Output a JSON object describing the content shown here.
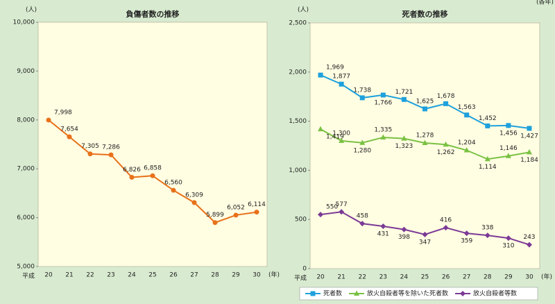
{
  "note": "(各年)",
  "chart_data": [
    {
      "type": "line",
      "title": "負傷者数の推移",
      "unit": "(人)",
      "x_prefix": "平成",
      "x_suffix": "(年)",
      "categories": [
        "20",
        "21",
        "22",
        "23",
        "24",
        "25",
        "26",
        "27",
        "28",
        "29",
        "30"
      ],
      "series": [
        {
          "name": null,
          "color": "#e8711a",
          "marker": "circle",
          "values": [
            7998,
            7654,
            7305,
            7286,
            6826,
            6858,
            6560,
            6309,
            5899,
            6052,
            6114
          ],
          "value_labels": [
            "7,998",
            "7,654",
            "7,305",
            "7,286",
            "6,826",
            "6,858",
            "6,560",
            "6,309",
            "5,899",
            "6,052",
            "6,114"
          ]
        }
      ],
      "ylim": [
        5000,
        10000
      ],
      "yticks": [
        {
          "value": 5000,
          "label": "5,000"
        },
        {
          "value": 6000,
          "label": "6,000"
        },
        {
          "value": 7000,
          "label": "7,000"
        },
        {
          "value": 8000,
          "label": "8,000"
        },
        {
          "value": 9000,
          "label": "9,000"
        },
        {
          "value": 10000,
          "label": "10,000"
        }
      ],
      "grid": false
    },
    {
      "type": "line",
      "title": "死者数の推移",
      "unit": "(人)",
      "x_prefix": "平成",
      "x_suffix": "(年)",
      "categories": [
        "20",
        "21",
        "22",
        "23",
        "24",
        "25",
        "26",
        "27",
        "28",
        "29",
        "30"
      ],
      "series": [
        {
          "name": "死者数",
          "color": "#1ea0dc",
          "marker": "square",
          "values": [
            1969,
            1877,
            1738,
            1766,
            1721,
            1625,
            1678,
            1563,
            1452,
            1456,
            1427
          ],
          "value_labels": [
            "1,969",
            "1,877",
            "1,738",
            "1,766",
            "1,721",
            "1,625",
            "1,678",
            "1,563",
            "1,452",
            "1,456",
            "1,427"
          ]
        },
        {
          "name": "放火自殺者等を除いた死者数",
          "color": "#7ac143",
          "marker": "triangle",
          "values": [
            1419,
            1300,
            1280,
            1335,
            1323,
            1278,
            1262,
            1204,
            1114,
            1146,
            1184
          ],
          "value_labels": [
            "1,419",
            "1,300",
            "1,280",
            "1,335",
            "1,323",
            "1,278",
            "1,262",
            "1,204",
            "1,114",
            "1,146",
            "1,184"
          ]
        },
        {
          "name": "放火自殺者等数",
          "color": "#7b3a96",
          "marker": "diamond",
          "values": [
            550,
            577,
            458,
            431,
            398,
            347,
            416,
            359,
            338,
            310,
            243
          ]
        }
      ],
      "ylim": [
        0,
        2500
      ],
      "yticks": [
        0,
        500,
        {
          "value": 1000,
          "label": "1,000"
        },
        {
          "value": 1500,
          "label": "1,500"
        },
        {
          "value": 2000,
          "label": "2,000"
        },
        {
          "value": 2500,
          "label": "2,500"
        }
      ],
      "grid": false,
      "legend": "bottom-right"
    }
  ]
}
